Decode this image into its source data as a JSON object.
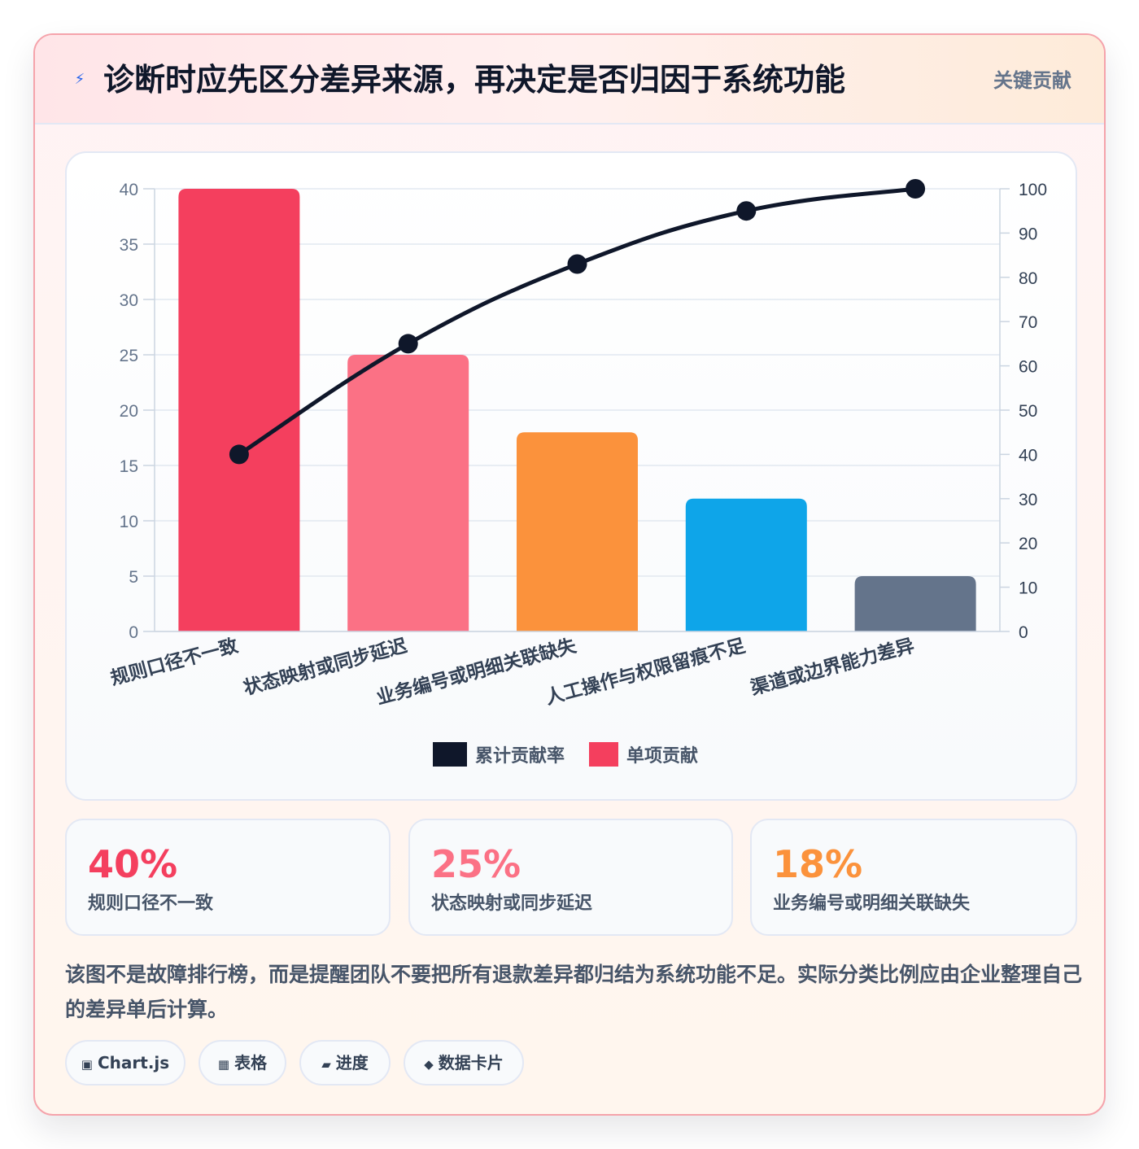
{
  "header": {
    "icon": "lightning-icon",
    "title": "诊断时应先区分差异来源，再决定是否归因于系统功能",
    "badge": "关键贡献"
  },
  "chart_data": {
    "type": "bar",
    "categories": [
      "规则口径不一致",
      "状态映射或同步延迟",
      "业务编号或明细关联缺失",
      "人工操作与权限留痕不足",
      "渠道或边界能力差异"
    ],
    "series": [
      {
        "name": "单项贡献",
        "type": "bar",
        "axis": "left",
        "values": [
          40,
          25,
          18,
          12,
          5
        ],
        "colors": [
          "#f43f5e",
          "#fb7185",
          "#fb923c",
          "#0ea5e9",
          "#64748b"
        ]
      },
      {
        "name": "累计贡献率",
        "type": "line",
        "axis": "right",
        "values": [
          40,
          65,
          83,
          95,
          100
        ],
        "color": "#0f172a"
      }
    ],
    "y_left": {
      "min": 0,
      "max": 40,
      "ticks": [
        0,
        5,
        10,
        15,
        20,
        25,
        30,
        35,
        40
      ]
    },
    "y_right": {
      "min": 0,
      "max": 100,
      "ticks": [
        0,
        10,
        20,
        30,
        40,
        50,
        60,
        70,
        80,
        90,
        100
      ]
    },
    "legend": {
      "position": "bottom",
      "entries": [
        "累计贡献率",
        "单项贡献"
      ]
    },
    "grid": true
  },
  "stats": [
    {
      "value": "40%",
      "label": "规则口径不一致",
      "color": "#f43f5e"
    },
    {
      "value": "25%",
      "label": "状态映射或同步延迟",
      "color": "#fb7185"
    },
    {
      "value": "18%",
      "label": "业务编号或明细关联缺失",
      "color": "#fb923c"
    }
  ],
  "note": "该图不是故障排行榜，而是提醒团队不要把所有退款差异都归结为系统功能不足。实际分类比例应由企业整理自己的差异单后计算。",
  "chips": [
    {
      "icon": "▣",
      "icon_name": "chart-icon",
      "label": "Chart.js"
    },
    {
      "icon": "▦",
      "icon_name": "table-icon",
      "label": "表格"
    },
    {
      "icon": "▰",
      "icon_name": "progress-icon",
      "label": "进度"
    },
    {
      "icon": "◆",
      "icon_name": "data-card-icon",
      "label": "数据卡片"
    }
  ]
}
